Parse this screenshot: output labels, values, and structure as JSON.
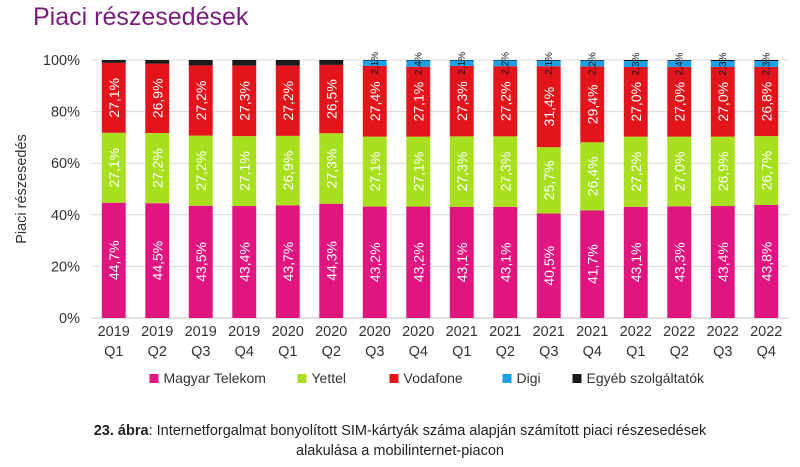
{
  "title": "Piaci részesedések",
  "caption": {
    "label": "23. ábra",
    "text_line1": ": Internetforgalmat bonyolított SIM-kártyák száma alapján számított piaci részesedések",
    "text_line2": "alakulása a mobilinternet-piacon"
  },
  "chart_data": {
    "type": "bar",
    "stacked": true,
    "ylabel": "Piaci részesedés",
    "ylim": [
      0,
      100
    ],
    "yticks": [
      "0%",
      "20%",
      "40%",
      "60%",
      "80%",
      "100%"
    ],
    "categories": [
      [
        "2019",
        "Q1"
      ],
      [
        "2019",
        "Q2"
      ],
      [
        "2019",
        "Q3"
      ],
      [
        "2019",
        "Q4"
      ],
      [
        "2020",
        "Q1"
      ],
      [
        "2020",
        "Q2"
      ],
      [
        "2020",
        "Q3"
      ],
      [
        "2020",
        "Q4"
      ],
      [
        "2021",
        "Q1"
      ],
      [
        "2021",
        "Q2"
      ],
      [
        "2021",
        "Q3"
      ],
      [
        "2021",
        "Q4"
      ],
      [
        "2022",
        "Q1"
      ],
      [
        "2022",
        "Q2"
      ],
      [
        "2022",
        "Q3"
      ],
      [
        "2022",
        "Q4"
      ]
    ],
    "legend_position": "bottom",
    "series": [
      {
        "name": "Magyar Telekom",
        "color": "#e0157f",
        "values": [
          44.7,
          44.5,
          43.5,
          43.4,
          43.7,
          44.3,
          43.2,
          43.2,
          43.1,
          43.1,
          40.5,
          41.7,
          43.1,
          43.3,
          43.4,
          43.8
        ],
        "labels": [
          "44,7%",
          "44,5%",
          "43,5%",
          "43,4%",
          "43,7%",
          "44,3%",
          "43,2%",
          "43,2%",
          "43,1%",
          "43,1%",
          "40,5%",
          "41,7%",
          "43,1%",
          "43,3%",
          "43,4%",
          "43,8%"
        ]
      },
      {
        "name": "Yettel",
        "color": "#a8e020",
        "values": [
          27.1,
          27.2,
          27.2,
          27.1,
          26.9,
          27.3,
          27.1,
          27.1,
          27.3,
          27.3,
          25.7,
          26.4,
          27.2,
          27.0,
          26.9,
          26.7
        ],
        "labels": [
          "27,1%",
          "27,2%",
          "27,2%",
          "27,1%",
          "26,9%",
          "27,3%",
          "27,1%",
          "27,1%",
          "27,3%",
          "27,3%",
          "25,7%",
          "26,4%",
          "27,2%",
          "27,0%",
          "26,9%",
          "26,7%"
        ]
      },
      {
        "name": "Vodafone",
        "color": "#e3141b",
        "values": [
          27.1,
          26.9,
          27.2,
          27.3,
          27.2,
          26.5,
          27.4,
          27.1,
          27.3,
          27.2,
          31.4,
          29.4,
          27.0,
          27.0,
          27.0,
          26.8
        ],
        "labels": [
          "27,1%",
          "26,9%",
          "27,2%",
          "27,3%",
          "27,2%",
          "26,5%",
          "27,4%",
          "27,1%",
          "27,3%",
          "27,2%",
          "31,4%",
          "29,4%",
          "27,0%",
          "27,0%",
          "27,0%",
          "26,8%"
        ]
      },
      {
        "name": "Digi",
        "color": "#1ea0e6",
        "values": [
          0,
          0,
          0,
          0,
          0,
          0,
          2.1,
          2.4,
          2.1,
          2.2,
          2.1,
          2.2,
          2.3,
          2.4,
          2.3,
          2.3
        ],
        "labels": [
          "",
          "",
          "",
          "",
          "",
          "",
          "2,1%",
          "2,4%",
          "2,1%",
          "2,2%",
          "2,1%",
          "2,2%",
          "2,3%",
          "2,4%",
          "2,3%",
          "2,3%"
        ]
      },
      {
        "name": "Egyéb szolgáltatók",
        "color": "#1a1a1a",
        "values": [
          1.1,
          1.4,
          2.1,
          2.2,
          2.2,
          1.9,
          0.2,
          0.2,
          0.2,
          0.2,
          0.3,
          0.3,
          0.4,
          0.3,
          0.4,
          0.4
        ],
        "labels": [
          "",
          "",
          "",
          "",
          "",
          "",
          "",
          "",
          "",
          "",
          "",
          "",
          "",
          "",
          "",
          ""
        ]
      }
    ]
  }
}
